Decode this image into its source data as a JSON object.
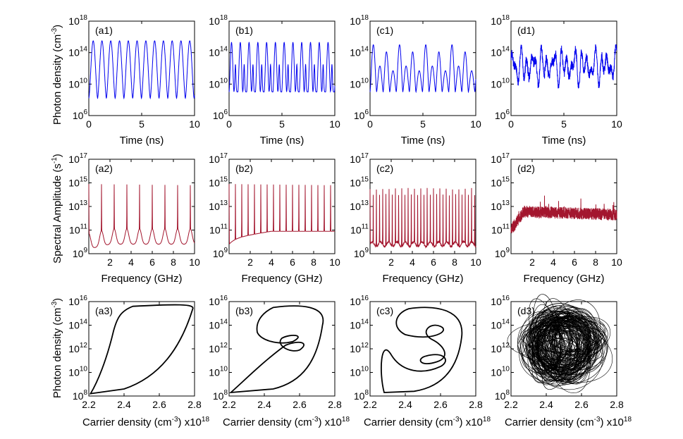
{
  "figure_labels": {
    "time_xlabel": "Time (ns)",
    "freq_xlabel": "Frequency (GHz)",
    "carrier_xlabel_main": "Carrier density (cm",
    "carrier_xlabel_exp1": "-3",
    "carrier_xlabel_mid": ") x10",
    "carrier_xlabel_exp2": "18",
    "row1_ylabel_main": "Photon density (cm",
    "row1_ylabel_exp": "-3",
    "row1_ylabel_end": ")",
    "row2_ylabel_main": "Spectral Amplitude (s",
    "row2_ylabel_exp": "-1",
    "row2_ylabel_end": ")",
    "row3_ylabel_main": "Photon density (cm",
    "row3_ylabel_exp": "-3",
    "row3_ylabel_end": ")"
  },
  "colors": {
    "time_series": "#0000ee",
    "spectrum": "#a3162e",
    "phase": "#000000"
  },
  "chart_data": [
    {
      "type": "line",
      "row": "time-series",
      "xlabel": "Time (ns)",
      "ylabel": "Photon density (cm^-3)",
      "xlim": [
        0,
        10
      ],
      "ylim_log10": [
        6,
        18
      ],
      "xticks": [
        "0",
        "5",
        "10"
      ],
      "yticks": [
        {
          "base": "10",
          "exp": "6"
        },
        {
          "base": "10",
          "exp": "10"
        },
        {
          "base": "10",
          "exp": "14"
        },
        {
          "base": "10",
          "exp": "18"
        }
      ],
      "panels": [
        {
          "tag": "(a1)",
          "dynamics": "period-1",
          "pulse_period_ns": 0.83,
          "peak_log10": 15.5,
          "trough_log10": 8.2
        },
        {
          "tag": "(b1)",
          "dynamics": "period-2",
          "pulse_period_ns": 0.83,
          "peak_log10": 15.3,
          "trough_log10": 9.0,
          "secondary_peak_log10": 12.5
        },
        {
          "tag": "(c1)",
          "dynamics": "period-4",
          "pulse_period_ns": 0.62,
          "peak_log10": 15.0,
          "trough_log10": 9.0
        },
        {
          "tag": "(d1)",
          "dynamics": "chaotic",
          "peak_log10": 15.0,
          "trough_log10": 9.5
        }
      ]
    },
    {
      "type": "line",
      "row": "spectra",
      "xlabel": "Frequency (GHz)",
      "ylabel": "Spectral Amplitude (s^-1)",
      "xlim": [
        0,
        10
      ],
      "ylim_log10": [
        9,
        17
      ],
      "xticks": [
        "2",
        "4",
        "6",
        "8",
        "10"
      ],
      "yticks": [
        {
          "base": "10",
          "exp": "9"
        },
        {
          "base": "10",
          "exp": "11"
        },
        {
          "base": "10",
          "exp": "13"
        },
        {
          "base": "10",
          "exp": "15"
        },
        {
          "base": "10",
          "exp": "17"
        }
      ],
      "panels": [
        {
          "tag": "(a2)",
          "fundamental_GHz": 1.2,
          "peak_log10": 14.9,
          "floor_log10": 9.4
        },
        {
          "tag": "(b2)",
          "fundamental_GHz": 0.6,
          "peak_log10": 14.9,
          "floor_log10": 10.3
        },
        {
          "tag": "(c2)",
          "fundamental_GHz": 0.3,
          "peak_log10": 14.5,
          "floor_log10": 9.4
        },
        {
          "tag": "(d2)",
          "broadband_level_log10": 12.6,
          "floor_log10": 12.0
        }
      ]
    },
    {
      "type": "line",
      "row": "phase-portraits",
      "xlabel": "Carrier density (cm^-3) x10^18",
      "ylabel": "Photon density (cm^-3)",
      "xlim": [
        2.2,
        2.8
      ],
      "ylim_log10": [
        8,
        16
      ],
      "xticks": [
        "2.2",
        "2.4",
        "2.6",
        "2.8"
      ],
      "yticks": [
        {
          "base": "10",
          "exp": "8"
        },
        {
          "base": "10",
          "exp": "10"
        },
        {
          "base": "10",
          "exp": "12"
        },
        {
          "base": "10",
          "exp": "14"
        },
        {
          "base": "10",
          "exp": "16"
        }
      ],
      "panels": [
        {
          "tag": "(a3)",
          "attractor": "single-loop limit cycle"
        },
        {
          "tag": "(b3)",
          "attractor": "two-loop limit cycle"
        },
        {
          "tag": "(c3)",
          "attractor": "multi-loop limit cycle"
        },
        {
          "tag": "(d3)",
          "attractor": "chaotic attractor"
        }
      ]
    }
  ]
}
